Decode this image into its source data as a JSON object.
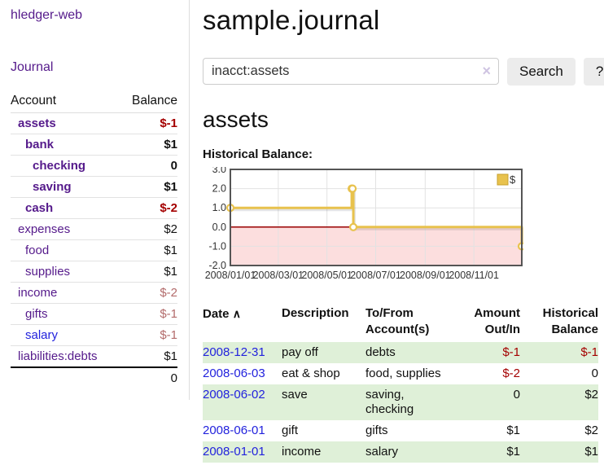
{
  "app": {
    "title": "hledger-web"
  },
  "sidebar": {
    "nav": [
      {
        "label": "Journal"
      }
    ],
    "table": {
      "account_header": "Account",
      "balance_header": "Balance"
    },
    "accounts": [
      {
        "name": "assets",
        "level": 1,
        "bold": true,
        "balance": "$-1",
        "balance_style": "neg-strong"
      },
      {
        "name": "bank",
        "level": 2,
        "bold": true,
        "balance": "$1",
        "balance_style": "normal"
      },
      {
        "name": "checking",
        "level": 3,
        "bold": true,
        "balance": "0",
        "balance_style": "normal"
      },
      {
        "name": "saving",
        "level": 3,
        "bold": true,
        "balance": "$1",
        "balance_style": "normal"
      },
      {
        "name": "cash",
        "level": 2,
        "bold": true,
        "balance": "$-2",
        "balance_style": "neg-strong"
      },
      {
        "name": "expenses",
        "level": 1,
        "bold": false,
        "balance": "$2",
        "balance_style": "normal"
      },
      {
        "name": "food",
        "level": 2,
        "bold": false,
        "balance": "$1",
        "balance_style": "normal"
      },
      {
        "name": "supplies",
        "level": 2,
        "bold": false,
        "balance": "$1",
        "balance_style": "normal"
      },
      {
        "name": "income",
        "level": 1,
        "bold": false,
        "balance": "$-2",
        "balance_style": "neg-muted"
      },
      {
        "name": "gifts",
        "level": 2,
        "bold": false,
        "balance": "$-1",
        "balance_style": "neg-muted"
      },
      {
        "name": "salary",
        "level": 2,
        "bold": false,
        "balance": "$-1",
        "balance_style": "neg-muted",
        "link_style": "blue"
      },
      {
        "name": "liabilities:debts",
        "level": 1,
        "bold": false,
        "balance": "$1",
        "balance_style": "normal"
      }
    ],
    "total": "0"
  },
  "main": {
    "title": "sample.journal",
    "search": {
      "value": "inacct:assets",
      "clear_icon": "×",
      "button_label": "Search",
      "help_label": "?"
    },
    "account_heading": "assets",
    "chart_label": "Historical Balance:"
  },
  "chart_data": {
    "type": "line",
    "style": "step-after",
    "title": "Historical Balance",
    "series": [
      {
        "name": "$",
        "points": [
          [
            "2008-01-01",
            1
          ],
          [
            "2008-06-01",
            2
          ],
          [
            "2008-06-02",
            2
          ],
          [
            "2008-06-03",
            0
          ],
          [
            "2008-12-31",
            -1
          ]
        ]
      }
    ],
    "x_range": [
      "2008-01-01",
      "2008-12-31"
    ],
    "x_ticks": [
      {
        "date": "2008-01-01",
        "label": "2008/01/01"
      },
      {
        "date": "2008-03-01",
        "label": "2008/03/01"
      },
      {
        "date": "2008-05-01",
        "label": "2008/05/01"
      },
      {
        "date": "2008-07-01",
        "label": "2008/07/01"
      },
      {
        "date": "2008-09-01",
        "label": "2008/09/01"
      },
      {
        "date": "2008-11-01",
        "label": "2008/11/01"
      }
    ],
    "y_ticks": [
      {
        "value": 3,
        "label": "3.0"
      },
      {
        "value": 2,
        "label": "2.0"
      },
      {
        "value": 1,
        "label": "1.0"
      },
      {
        "value": 0,
        "label": "0.0"
      },
      {
        "value": -1,
        "label": "-1.0"
      },
      {
        "value": -2,
        "label": "-2.0"
      }
    ],
    "ylim": [
      -2,
      3
    ],
    "grid": true,
    "legend": {
      "label": "$",
      "position": "top-right"
    },
    "colors": {
      "line": "#e8c24d",
      "point_fill": "#ffffff",
      "legend_border": "#c7a02c",
      "negative_fill": "#fcdede",
      "zero_line": "#990000",
      "grid": "#e2e2e2",
      "border": "#555555"
    }
  },
  "transactions": {
    "headers": {
      "date": "Date",
      "sort_icon": "∧",
      "description": "Description",
      "accounts": "To/From Account(s)",
      "amount": "Amount Out/In",
      "balance": "Historical Balance"
    },
    "rows": [
      {
        "date": "2008-12-31",
        "description": "pay off",
        "accounts": "debts",
        "amount": "$-1",
        "amount_style": "neg",
        "balance": "$-1",
        "balance_style": "neg"
      },
      {
        "date": "2008-06-03",
        "description": "eat & shop",
        "accounts": "food, supplies",
        "amount": "$-2",
        "amount_style": "neg",
        "balance": "0",
        "balance_style": "normal"
      },
      {
        "date": "2008-06-02",
        "description": "save",
        "accounts": "saving, checking",
        "amount": "0",
        "amount_style": "normal",
        "balance": "$2",
        "balance_style": "normal"
      },
      {
        "date": "2008-06-01",
        "description": "gift",
        "accounts": "gifts",
        "amount": "$1",
        "amount_style": "normal",
        "balance": "$2",
        "balance_style": "normal"
      },
      {
        "date": "2008-01-01",
        "description": "income",
        "accounts": "salary",
        "amount": "$1",
        "amount_style": "normal",
        "balance": "$1",
        "balance_style": "normal"
      }
    ]
  }
}
